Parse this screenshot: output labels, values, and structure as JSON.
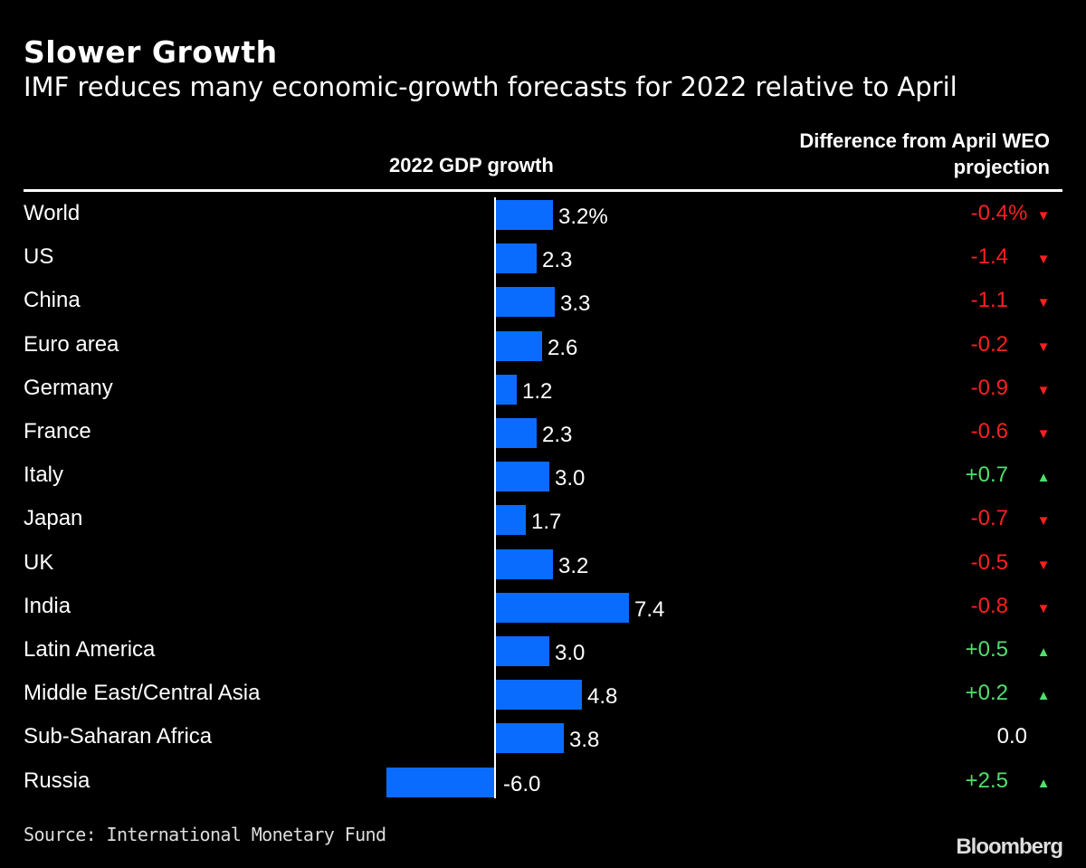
{
  "title": "Slower Growth",
  "subtitle": "IMF reduces many economic-growth forecasts for 2022 relative to April",
  "source": "Source: International Monetary Fund",
  "logo": "Bloomberg",
  "colors": {
    "bar": "#0a6cff",
    "negative": "#ff1f1f",
    "positive": "#4fe06d",
    "neutral": "#ffffff"
  },
  "chart_data": {
    "type": "bar",
    "orientation": "horizontal",
    "title": "Slower Growth",
    "subtitle": "IMF reduces many economic-growth forecasts for 2022 relative to April",
    "column_headers": {
      "growth": "2022 GDP growth",
      "diff_line1": "Difference from April WEO",
      "diff_line2": "projection"
    },
    "categories": [
      "World",
      "US",
      "China",
      "Euro area",
      "Germany",
      "France",
      "Italy",
      "Japan",
      "UK",
      "India",
      "Latin America",
      "Middle East/Central Asia",
      "Sub-Saharan Africa",
      "Russia"
    ],
    "value_labels": [
      "3.2%",
      "2.3",
      "3.3",
      "2.6",
      "1.2",
      "2.3",
      "3.0",
      "1.7",
      "3.2",
      "7.4",
      "3.0",
      "4.8",
      "3.8",
      "-6.0"
    ],
    "values": [
      3.2,
      2.3,
      3.3,
      2.6,
      1.2,
      2.3,
      3.0,
      1.7,
      3.2,
      7.4,
      3.0,
      4.8,
      3.8,
      -6.0
    ],
    "differences": [
      -0.4,
      -1.4,
      -1.1,
      -0.2,
      -0.9,
      -0.6,
      0.7,
      -0.7,
      -0.5,
      -0.8,
      0.5,
      0.2,
      0.0,
      2.5
    ],
    "difference_labels": [
      "-0.4",
      "-1.4",
      "-1.1",
      "-0.2",
      "-0.9",
      "-0.6",
      "+0.7",
      "-0.7",
      "-0.5",
      "-0.8",
      "+0.5",
      "+0.2",
      "0.0",
      "+2.5"
    ],
    "difference_unit_first_row": "%",
    "grid": false
  }
}
